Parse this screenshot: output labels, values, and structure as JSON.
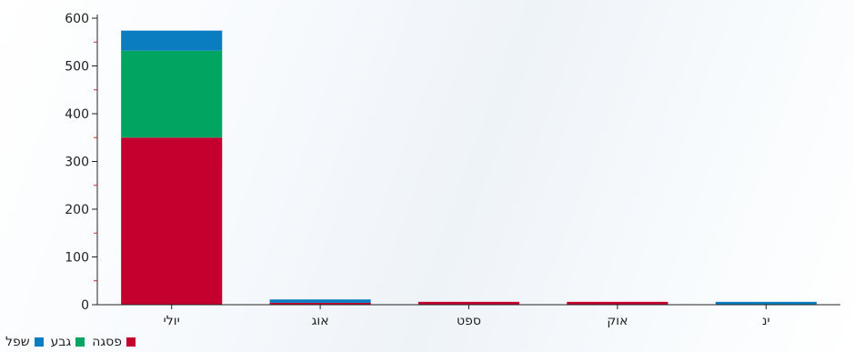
{
  "chart_data": {
    "type": "bar",
    "stacked": true,
    "categories": [
      "יולי",
      "אוג",
      "ספט",
      "אוק",
      "ינ"
    ],
    "series": [
      {
        "name": "פסגה",
        "color": "#c4002f",
        "values": [
          350,
          4,
          6,
          6,
          0
        ]
      },
      {
        "name": "גבע",
        "color": "#00a562",
        "values": [
          182,
          0,
          0,
          0,
          0
        ]
      },
      {
        "name": "שפל",
        "color": "#0a7cc0",
        "values": [
          42,
          7,
          0,
          0,
          6
        ]
      }
    ],
    "title": "",
    "xlabel": "",
    "ylabel": "",
    "ylim": [
      0,
      600
    ],
    "yticks": [
      0,
      100,
      200,
      300,
      400,
      500,
      600
    ],
    "grid": false,
    "legend_position": "bottom-left"
  }
}
